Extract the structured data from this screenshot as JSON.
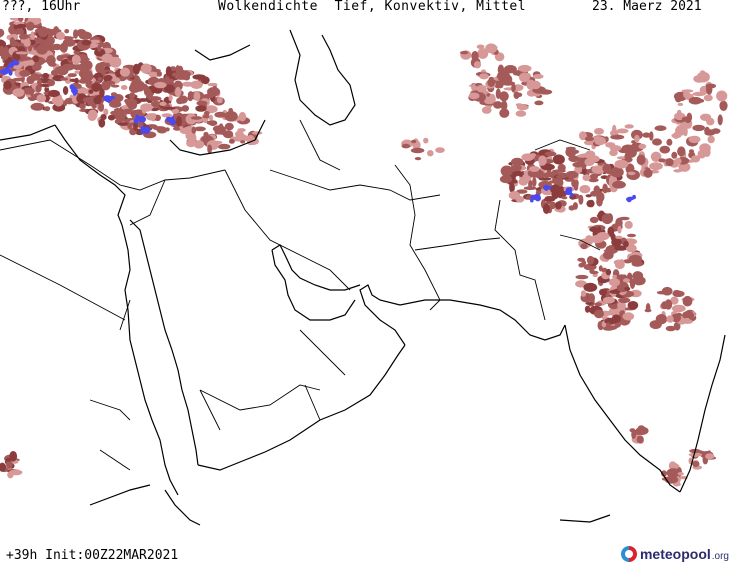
{
  "header": {
    "valid_time": "???, 16Uhr",
    "title": "Wolkendichte  Tief, Konvektiv, Mittel",
    "date": "23. Maerz 2021"
  },
  "footer": {
    "forecast_init": "+39h Init:00Z22MAR2021",
    "brand_name": "meteopool",
    "brand_tld": ".org"
  },
  "colors": {
    "cloud_medium": "#a55a5a",
    "cloud_dense": "#8b3d3d",
    "cloud_light": "#d79898",
    "convective": "#4a4af0",
    "coastline": "#000000",
    "background": "#ffffff"
  }
}
